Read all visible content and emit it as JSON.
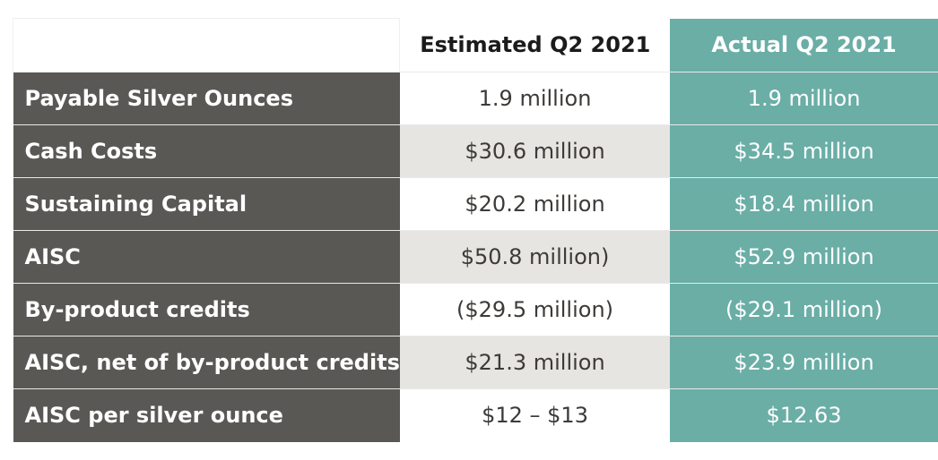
{
  "table": {
    "columns": [
      "",
      "Estimated Q2 2021",
      "Actual Q2 2021"
    ],
    "rows": [
      {
        "label": "Payable Silver Ounces",
        "estimated": "1.9 million",
        "actual": "1.9 million"
      },
      {
        "label": "Cash Costs",
        "estimated": "$30.6 million",
        "actual": "$34.5 million"
      },
      {
        "label": "Sustaining Capital",
        "estimated": "$20.2 million",
        "actual": "$18.4 million"
      },
      {
        "label": "AISC",
        "estimated": "$50.8 million)",
        "actual": "$52.9 million"
      },
      {
        "label": "By-product credits",
        "estimated": "($29.5 million)",
        "actual": "($29.1 million)"
      },
      {
        "label": "AISC, net of by-product credits",
        "estimated": "$21.3 million",
        "actual": "$23.9 million"
      },
      {
        "label": "AISC per silver ounce",
        "estimated": "$12 – $13",
        "actual": "$12.63"
      }
    ]
  },
  "colors": {
    "label_bg": "#5a5854",
    "actual_bg": "#6aaea6",
    "estimated_alt_bg": "#e6e5e2"
  }
}
